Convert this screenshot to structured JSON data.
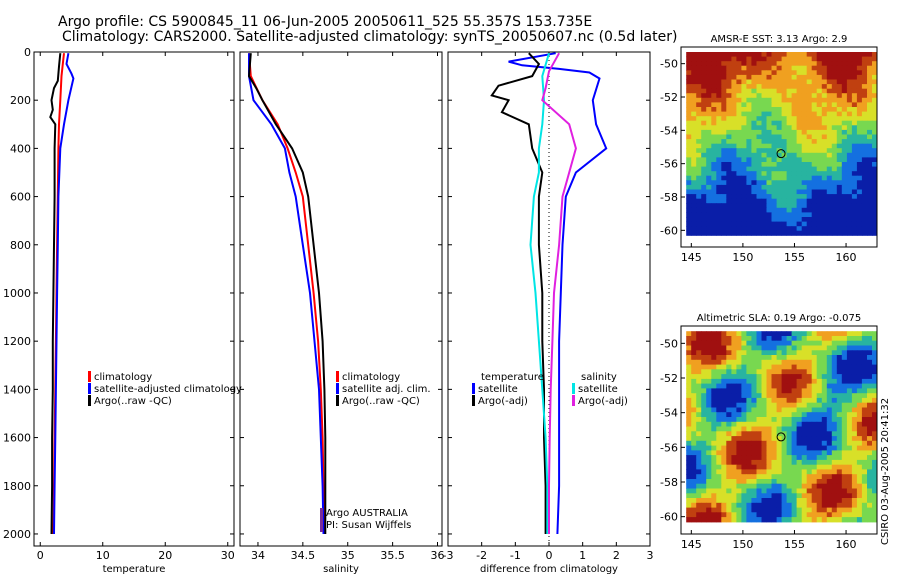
{
  "title": {
    "line1": "Argo profile: CS 5900845_11 06-Jun-2005 20050611_525 55.357S 153.735E",
    "line2": "Climatology: CARS2000. Satellite-adjusted climatology: synTS_20050607.nc (0.5d later)"
  },
  "stamp": "CSIRO 03-Aug-2005 20:41:32",
  "colors": {
    "red": "#ff0000",
    "blue": "#0000ff",
    "black": "#000000",
    "cyan": "#00e5e5",
    "magenta": "#e020e0"
  },
  "chart_data": [
    {
      "type": "line",
      "xlabel": "temperature",
      "xlim": [
        -1,
        31
      ],
      "ylim": [
        0,
        2050
      ],
      "xticks": [
        0,
        10,
        20,
        30
      ],
      "yticks": [
        0,
        200,
        400,
        600,
        800,
        1000,
        1200,
        1400,
        1600,
        1800,
        2000
      ],
      "legend": [
        "climatology",
        "satellite-adjusted climatology",
        "Argo(..raw -QC)"
      ],
      "series": [
        {
          "name": "climatology",
          "color": "red",
          "points": [
            [
              3.8,
              5
            ],
            [
              3.6,
              50
            ],
            [
              3.4,
              100
            ],
            [
              3.2,
              200
            ],
            [
              3.0,
              300
            ],
            [
              2.9,
              400
            ],
            [
              2.8,
              600
            ],
            [
              2.7,
              800
            ],
            [
              2.6,
              1000
            ],
            [
              2.5,
              1200
            ],
            [
              2.4,
              1400
            ],
            [
              2.3,
              1600
            ],
            [
              2.2,
              1800
            ],
            [
              2.1,
              2000
            ]
          ]
        },
        {
          "name": "satellite-adjusted climatology",
          "color": "blue",
          "points": [
            [
              4.5,
              5
            ],
            [
              4.2,
              50
            ],
            [
              5.0,
              90
            ],
            [
              5.3,
              110
            ],
            [
              4.5,
              200
            ],
            [
              3.8,
              300
            ],
            [
              3.2,
              400
            ],
            [
              2.9,
              600
            ],
            [
              2.8,
              800
            ],
            [
              2.7,
              1000
            ],
            [
              2.6,
              1200
            ],
            [
              2.5,
              1400
            ],
            [
              2.4,
              1600
            ],
            [
              2.3,
              1800
            ],
            [
              2.2,
              2000
            ]
          ]
        },
        {
          "name": "Argo(..raw -QC)",
          "color": "black",
          "points": [
            [
              3.2,
              5
            ],
            [
              3.0,
              60
            ],
            [
              2.8,
              120
            ],
            [
              2.2,
              150
            ],
            [
              1.8,
              200
            ],
            [
              2.0,
              240
            ],
            [
              1.6,
              270
            ],
            [
              2.4,
              300
            ],
            [
              2.3,
              400
            ],
            [
              2.3,
              600
            ],
            [
              2.2,
              800
            ],
            [
              2.1,
              1000
            ],
            [
              2.0,
              1200
            ],
            [
              2.0,
              1400
            ],
            [
              1.9,
              1600
            ],
            [
              1.9,
              1800
            ],
            [
              1.8,
              2000
            ]
          ]
        }
      ]
    },
    {
      "type": "line",
      "xlabel": "salinity",
      "xlim": [
        33.8,
        36.05
      ],
      "ylim": [
        0,
        2050
      ],
      "xticks": [
        34,
        34.5,
        35,
        35.5,
        36
      ],
      "yticks": [
        0,
        200,
        400,
        600,
        800,
        1000,
        1200,
        1400,
        1600,
        1800,
        2000
      ],
      "legend": [
        "climatology",
        "satellite adj. clim.",
        "Argo(..raw -QC)"
      ],
      "annotations": [
        "Argo AUSTRALIA",
        "PI: Susan Wijffels"
      ],
      "series": [
        {
          "name": "climatology",
          "color": "red",
          "points": [
            [
              33.9,
              5
            ],
            [
              33.92,
              100
            ],
            [
              34.05,
              200
            ],
            [
              34.22,
              300
            ],
            [
              34.33,
              400
            ],
            [
              34.42,
              500
            ],
            [
              34.5,
              600
            ],
            [
              34.56,
              800
            ],
            [
              34.62,
              1000
            ],
            [
              34.67,
              1200
            ],
            [
              34.7,
              1400
            ],
            [
              34.72,
              1600
            ],
            [
              34.73,
              1800
            ],
            [
              34.74,
              2000
            ]
          ]
        },
        {
          "name": "satellite adj. clim.",
          "color": "blue",
          "points": [
            [
              33.9,
              5
            ],
            [
              33.9,
              100
            ],
            [
              33.95,
              200
            ],
            [
              34.15,
              300
            ],
            [
              34.3,
              400
            ],
            [
              34.35,
              500
            ],
            [
              34.42,
              600
            ],
            [
              34.5,
              800
            ],
            [
              34.58,
              1000
            ],
            [
              34.63,
              1200
            ],
            [
              34.68,
              1400
            ],
            [
              34.7,
              1600
            ],
            [
              34.72,
              1800
            ],
            [
              34.73,
              2000
            ]
          ]
        },
        {
          "name": "Argo(..raw -QC)",
          "color": "black",
          "points": [
            [
              33.92,
              5
            ],
            [
              33.9,
              100
            ],
            [
              33.98,
              150
            ],
            [
              34.05,
              200
            ],
            [
              34.2,
              300
            ],
            [
              34.38,
              400
            ],
            [
              34.5,
              500
            ],
            [
              34.56,
              600
            ],
            [
              34.62,
              800
            ],
            [
              34.68,
              1000
            ],
            [
              34.72,
              1200
            ],
            [
              34.74,
              1400
            ],
            [
              34.75,
              1600
            ],
            [
              34.75,
              1800
            ],
            [
              34.75,
              2000
            ]
          ]
        }
      ]
    },
    {
      "type": "line",
      "xlabel": "difference from climatology",
      "xlim": [
        -3,
        3
      ],
      "ylim": [
        0,
        2050
      ],
      "xticks": [
        -3,
        -2,
        -1,
        0,
        1,
        2,
        3
      ],
      "yticks": [
        0,
        200,
        400,
        600,
        800,
        1000,
        1200,
        1400,
        1600,
        1800,
        2000
      ],
      "legend_left": {
        "header": "temperature",
        "items": [
          "satellite",
          "Argo(-adj)"
        ]
      },
      "legend_right": {
        "header": "salinity",
        "items": [
          "satellite",
          "Argo(-adj)"
        ]
      },
      "series": [
        {
          "name": "temperature satellite",
          "color": "blue",
          "points": [
            [
              0.2,
              5
            ],
            [
              -1.2,
              40
            ],
            [
              -0.8,
              55
            ],
            [
              0.3,
              70
            ],
            [
              1.2,
              85
            ],
            [
              1.5,
              110
            ],
            [
              1.3,
              200
            ],
            [
              1.4,
              300
            ],
            [
              1.7,
              400
            ],
            [
              0.8,
              500
            ],
            [
              0.5,
              600
            ],
            [
              0.4,
              800
            ],
            [
              0.35,
              1000
            ],
            [
              0.3,
              1200
            ],
            [
              0.3,
              1400
            ],
            [
              0.3,
              1600
            ],
            [
              0.3,
              1800
            ],
            [
              0.25,
              2000
            ]
          ]
        },
        {
          "name": "temperature Argo(-adj)",
          "color": "black",
          "points": [
            [
              -0.6,
              5
            ],
            [
              -0.3,
              50
            ],
            [
              -0.5,
              100
            ],
            [
              -1.5,
              140
            ],
            [
              -1.7,
              180
            ],
            [
              -1.2,
              200
            ],
            [
              -1.4,
              250
            ],
            [
              -0.6,
              300
            ],
            [
              -0.5,
              400
            ],
            [
              -0.2,
              500
            ],
            [
              -0.3,
              600
            ],
            [
              -0.3,
              800
            ],
            [
              -0.2,
              1000
            ],
            [
              -0.2,
              1200
            ],
            [
              -0.15,
              1400
            ],
            [
              -0.15,
              1600
            ],
            [
              -0.1,
              1800
            ],
            [
              -0.1,
              2000
            ]
          ]
        },
        {
          "name": "salinity satellite",
          "color": "cyan",
          "points": [
            [
              0,
              5
            ],
            [
              -0.2,
              100
            ],
            [
              -0.15,
              200
            ],
            [
              -0.2,
              300
            ],
            [
              -0.3,
              400
            ],
            [
              -0.3,
              500
            ],
            [
              -0.45,
              600
            ],
            [
              -0.55,
              800
            ],
            [
              -0.4,
              1000
            ],
            [
              -0.3,
              1200
            ],
            [
              -0.2,
              1400
            ],
            [
              -0.1,
              1600
            ],
            [
              -0.05,
              1800
            ],
            [
              -0.05,
              2000
            ]
          ]
        },
        {
          "name": "salinity Argo(-adj)",
          "color": "magenta",
          "points": [
            [
              0.3,
              5
            ],
            [
              0,
              80
            ],
            [
              -0.1,
              150
            ],
            [
              -0.2,
              200
            ],
            [
              0.6,
              300
            ],
            [
              0.8,
              400
            ],
            [
              0.6,
              500
            ],
            [
              0.4,
              600
            ],
            [
              0.3,
              800
            ],
            [
              0.15,
              1000
            ],
            [
              0.1,
              1200
            ],
            [
              0.05,
              1400
            ],
            [
              0.02,
              1600
            ],
            [
              0.0,
              1800
            ],
            [
              0.0,
              2000
            ]
          ]
        }
      ]
    },
    {
      "type": "heatmap",
      "title": "AMSR-E SST: 3.13 Argo: 2.9",
      "xlim": [
        144,
        163
      ],
      "ylim": [
        -61,
        -49
      ],
      "xticks": [
        145,
        150,
        155,
        160
      ],
      "yticks": [
        -50,
        -52,
        -54,
        -56,
        -58,
        -60
      ],
      "colormap": [
        "#0a1ea8",
        "#1470e0",
        "#28b4a0",
        "#78d850",
        "#d8e028",
        "#f0a020",
        "#c04010",
        "#a01010"
      ],
      "marker": [
        153.7,
        -55.4
      ]
    },
    {
      "type": "heatmap",
      "title": "Altimetric SLA: 0.19 Argo: -0.075",
      "xlim": [
        144,
        163
      ],
      "ylim": [
        -61,
        -49
      ],
      "xticks": [
        145,
        150,
        155,
        160
      ],
      "yticks": [
        -50,
        -52,
        -54,
        -56,
        -58,
        -60
      ],
      "colormap": [
        "#0a1ea8",
        "#1470e0",
        "#28b4a0",
        "#78d850",
        "#d8e028",
        "#f0a020",
        "#c04010",
        "#a01010"
      ],
      "marker": [
        153.7,
        -55.4
      ]
    }
  ]
}
